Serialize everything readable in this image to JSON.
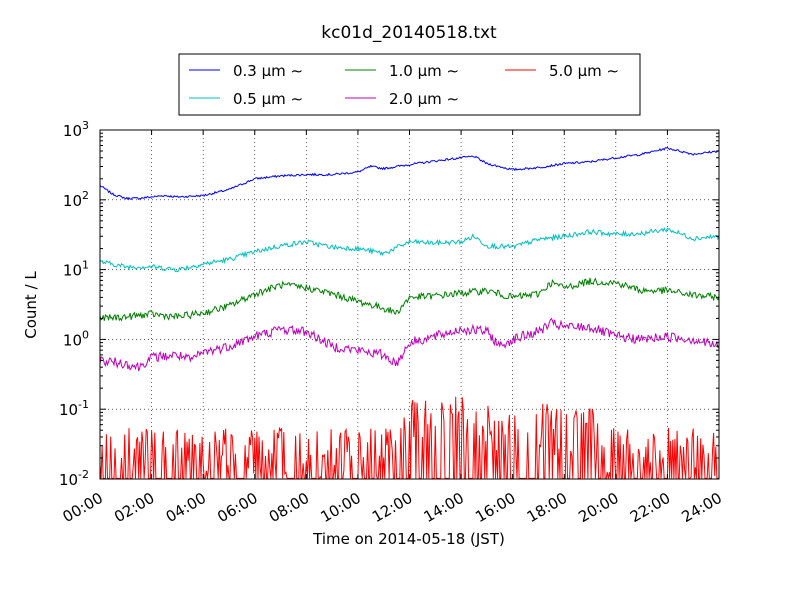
{
  "chart_data": {
    "type": "line",
    "title": "kc01d_20140518.txt",
    "xlabel": "Time on 2014-05-18 (JST)",
    "ylabel": "Count / L",
    "y_scale": "log",
    "xlim": [
      "2014-05-18 00:00",
      "2014-05-19 00:00"
    ],
    "ylim": [
      0.01,
      1000
    ],
    "grid": true,
    "legend_position": "top-center",
    "x_ticks": [
      "00:00",
      "02:00",
      "04:00",
      "06:00",
      "08:00",
      "10:00",
      "12:00",
      "14:00",
      "16:00",
      "18:00",
      "20:00",
      "22:00",
      "24:00"
    ],
    "y_ticks": [
      {
        "value": 0.01,
        "base": "10",
        "exp": "-2"
      },
      {
        "value": 0.1,
        "base": "10",
        "exp": "-1"
      },
      {
        "value": 1,
        "base": "10",
        "exp": "0"
      },
      {
        "value": 10,
        "base": "10",
        "exp": "1"
      },
      {
        "value": 100,
        "base": "10",
        "exp": "2"
      },
      {
        "value": 1000,
        "base": "10",
        "exp": "3"
      }
    ],
    "series": [
      {
        "name": "0.3 μm ∼",
        "color": "#0000ff",
        "x": [
          0,
          0.5,
          1,
          1.5,
          2,
          2.5,
          3,
          4,
          5,
          6,
          7,
          8,
          9,
          10,
          10.5,
          11,
          12,
          13,
          14,
          14.5,
          15,
          16,
          17,
          18,
          19,
          20,
          21,
          22,
          23,
          24
        ],
        "values": [
          160,
          120,
          105,
          105,
          110,
          115,
          110,
          115,
          140,
          200,
          220,
          230,
          230,
          250,
          300,
          280,
          320,
          360,
          400,
          420,
          330,
          270,
          290,
          330,
          350,
          400,
          450,
          550,
          450,
          500
        ]
      },
      {
        "name": "0.5 μm ∼",
        "color": "#00bfbf",
        "x": [
          0,
          1,
          2,
          3,
          4,
          5,
          6,
          7,
          8,
          9,
          10,
          11,
          12,
          13,
          14,
          14.5,
          15,
          16,
          17,
          18,
          19,
          20,
          21,
          22,
          23,
          24
        ],
        "values": [
          13,
          11,
          11,
          10,
          12,
          14,
          18,
          22,
          25,
          21,
          20,
          17,
          25,
          24,
          25,
          30,
          22,
          21,
          27,
          30,
          35,
          32,
          33,
          38,
          28,
          30
        ]
      },
      {
        "name": "1.0 μm ∼",
        "color": "#008000",
        "x": [
          0,
          1,
          2,
          3,
          4,
          5,
          6,
          7,
          8,
          9,
          10,
          11,
          11.5,
          12,
          13,
          14,
          15,
          16,
          17,
          17.5,
          18,
          19,
          20,
          21,
          22,
          23,
          24
        ],
        "values": [
          2,
          2.1,
          2.3,
          2.1,
          2.4,
          3,
          4.5,
          6,
          5.5,
          4.5,
          3.5,
          2.8,
          2.4,
          4,
          4.2,
          4.6,
          5,
          4,
          4.5,
          6.5,
          5.5,
          6.8,
          6.5,
          5,
          5,
          4.3,
          4
        ]
      },
      {
        "name": "2.0 μm ∼",
        "color": "#bf00bf",
        "x": [
          0,
          1,
          1.5,
          2,
          3,
          3.5,
          4,
          5,
          6,
          7,
          8,
          9,
          10,
          11,
          11.5,
          12,
          13,
          14,
          15,
          15.5,
          16,
          17,
          17.5,
          18,
          19,
          20,
          21,
          22,
          23,
          24
        ],
        "values": [
          0.5,
          0.45,
          0.4,
          0.55,
          0.6,
          0.5,
          0.65,
          0.8,
          1.1,
          1.4,
          1.3,
          0.8,
          0.7,
          0.6,
          0.45,
          0.9,
          1.1,
          1.4,
          1.3,
          0.8,
          1,
          1.3,
          1.7,
          1.5,
          1.5,
          1.1,
          1,
          1.1,
          1,
          0.8
        ]
      },
      {
        "name": "5.0 μm ∼",
        "color": "#ff0000",
        "x": [
          0,
          1,
          2,
          3,
          4,
          5,
          6,
          7,
          8,
          9,
          10,
          11,
          11.5,
          12,
          13,
          14,
          15,
          16,
          17,
          18,
          19,
          20,
          21,
          22,
          23,
          24
        ],
        "values": [
          0.02,
          0.02,
          0.02,
          0.03,
          0.02,
          0.02,
          0.02,
          0.02,
          0.02,
          0.02,
          0.02,
          0.02,
          0.02,
          0.05,
          0.05,
          0.06,
          0.05,
          0.04,
          0.05,
          0.04,
          0.04,
          0.02,
          0.02,
          0.02,
          0.02,
          0.02
        ]
      }
    ]
  }
}
